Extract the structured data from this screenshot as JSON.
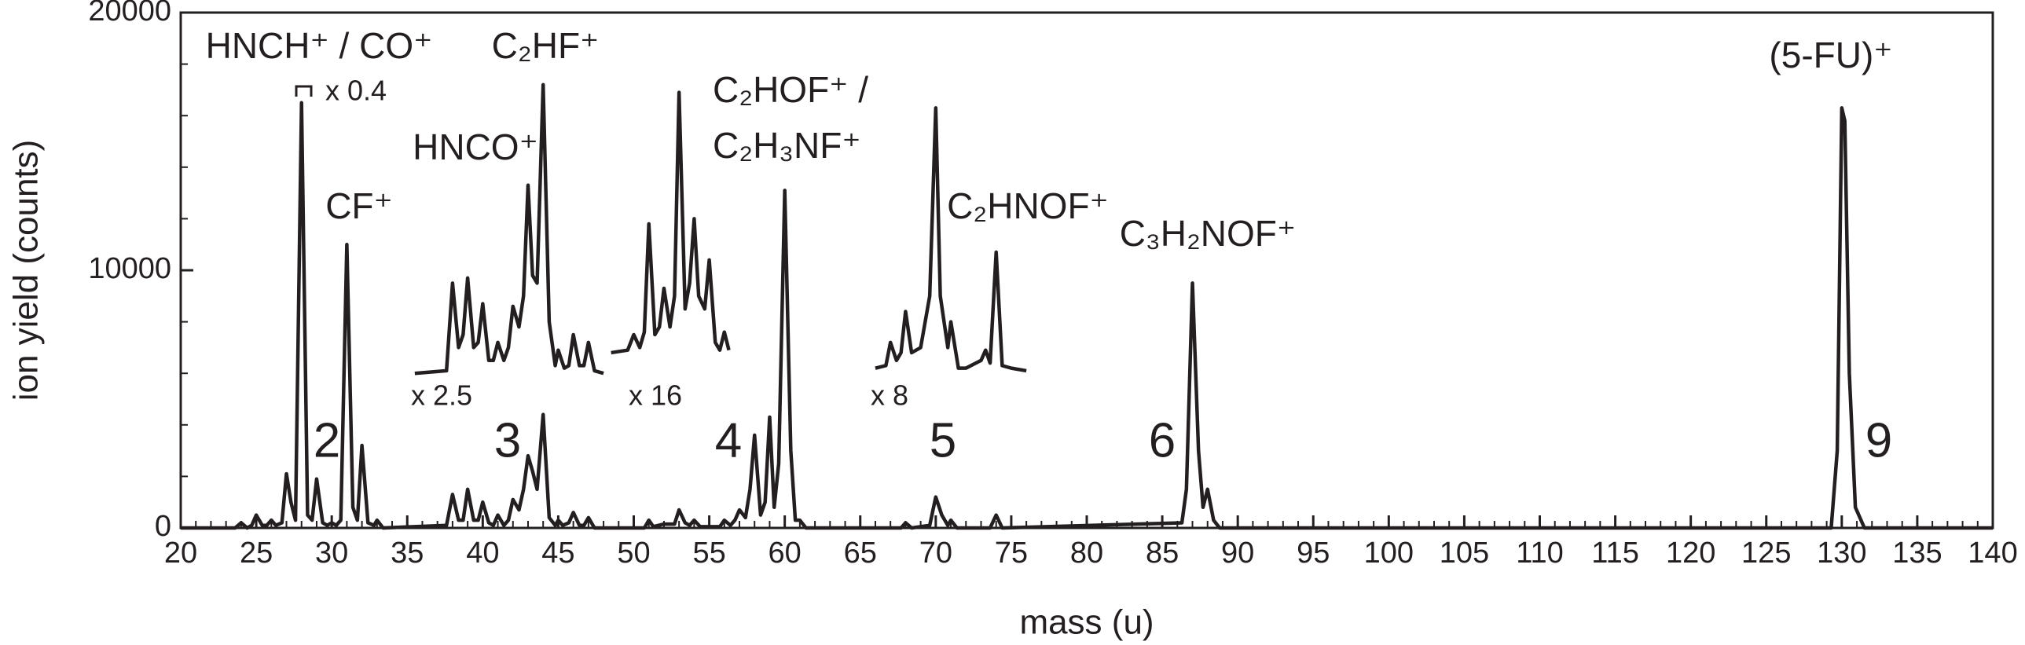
{
  "chart_data": {
    "type": "line",
    "xlabel": "mass (u)",
    "ylabel": "ion yield (counts)",
    "xlim": [
      20,
      140
    ],
    "xticks": [
      20,
      25,
      30,
      35,
      40,
      45,
      50,
      55,
      60,
      65,
      70,
      75,
      80,
      85,
      90,
      95,
      100,
      105,
      110,
      115,
      120,
      125,
      130,
      135,
      140
    ],
    "ylim": [
      0,
      20000
    ],
    "yticks": [
      0,
      10000,
      20000
    ],
    "series": [
      {
        "color": "#231f20",
        "x": [
          20,
          23.6,
          24,
          24.4,
          24.7,
          25,
          25.4,
          25.7,
          26,
          26.3,
          26.7,
          27,
          27.3,
          27.6,
          28,
          28.4,
          28.7,
          29,
          29.4,
          29.7,
          30,
          30.3,
          30.6,
          31,
          31.4,
          31.7,
          32,
          32.4,
          32.8,
          33,
          33.4,
          37.6,
          38,
          38.4,
          38.7,
          39,
          39.4,
          39.7,
          40,
          40.4,
          40.7,
          41,
          41.4,
          41.7,
          42,
          42.4,
          42.7,
          43,
          43.3,
          43.6,
          44,
          44.4,
          44.8,
          45,
          45.3,
          45.7,
          46,
          46.4,
          46.7,
          47,
          47.4,
          50.7,
          51,
          51.3,
          52,
          52.7,
          53,
          53.4,
          53.7,
          54,
          54.4,
          55.7,
          56,
          56.4,
          56.7,
          57,
          57.4,
          57.7,
          58,
          58.4,
          58.7,
          59,
          59.3,
          59.6,
          60,
          60.4,
          60.7,
          61,
          61.4,
          67.7,
          68,
          68.4,
          69.6,
          70,
          70.4,
          70.8,
          71,
          71.4,
          73.6,
          74,
          74.4,
          86.3,
          86.6,
          87,
          87.4,
          87.7,
          88,
          88.4,
          88.8,
          129.3,
          129.7,
          130,
          130.2,
          130.5,
          130.9,
          131.5,
          140
        ],
        "values": [
          0,
          0,
          200,
          0,
          100,
          500,
          100,
          100,
          300,
          100,
          200,
          2100,
          1000,
          300,
          16500,
          500,
          300,
          1900,
          200,
          100,
          200,
          100,
          300,
          11000,
          800,
          300,
          3200,
          200,
          100,
          300,
          0,
          100,
          1300,
          300,
          300,
          1500,
          300,
          300,
          1000,
          200,
          100,
          500,
          100,
          300,
          1100,
          700,
          1500,
          2800,
          2200,
          1500,
          4400,
          400,
          100,
          300,
          100,
          200,
          600,
          100,
          100,
          400,
          0,
          0,
          300,
          50,
          150,
          150,
          700,
          200,
          100,
          300,
          50,
          50,
          300,
          100,
          300,
          700,
          400,
          1500,
          3600,
          500,
          1000,
          4300,
          800,
          2500,
          13100,
          3000,
          300,
          300,
          0,
          0,
          200,
          0,
          100,
          1200,
          500,
          100,
          300,
          0,
          0,
          500,
          0,
          200,
          1500,
          9500,
          3000,
          800,
          1500,
          300,
          0,
          0,
          3000,
          16300,
          15800,
          6000,
          800,
          0,
          0
        ]
      },
      {
        "color": "#231f20",
        "x": [
          35.5,
          37.6,
          38,
          38.4,
          38.7,
          39,
          39.4,
          39.7,
          40,
          40.4,
          40.7,
          41,
          41.4,
          41.7,
          42,
          42.4,
          42.7,
          43,
          43.3,
          43.6,
          44,
          44.4,
          44.8,
          45,
          45.4,
          45.7,
          46,
          46.4,
          46.7,
          47,
          47.4,
          48
        ],
        "values": [
          6000,
          6100,
          9500,
          7000,
          7500,
          9700,
          7000,
          7200,
          8700,
          6500,
          6500,
          7200,
          6500,
          7000,
          8600,
          7800,
          9000,
          13300,
          9800,
          9500,
          17200,
          8000,
          6300,
          6900,
          6200,
          6300,
          7500,
          6300,
          6300,
          7200,
          6100,
          6000
        ]
      },
      {
        "color": "#231f20",
        "x": [
          48.5,
          49.6,
          50,
          50.4,
          50.7,
          51,
          51.4,
          51.7,
          52,
          52.4,
          52.7,
          53,
          53.4,
          53.7,
          54,
          54.3,
          54.7,
          55,
          55.4,
          55.7,
          56,
          56.3
        ],
        "values": [
          6800,
          6900,
          7500,
          7000,
          7600,
          11800,
          7500,
          7800,
          9300,
          7800,
          9000,
          16900,
          8500,
          9500,
          12000,
          9000,
          8500,
          10400,
          7200,
          6900,
          7600,
          6900
        ]
      },
      {
        "color": "#231f20",
        "x": [
          66,
          66.7,
          67,
          67.4,
          67.7,
          68,
          68.4,
          69,
          69.6,
          70,
          70.3,
          70.8,
          71,
          71.5,
          72,
          73,
          73.3,
          73.6,
          74,
          74.4,
          75,
          76
        ],
        "values": [
          6200,
          6300,
          7200,
          6500,
          6800,
          8400,
          6800,
          7000,
          9000,
          16300,
          9000,
          7000,
          8000,
          6200,
          6200,
          6500,
          6900,
          6400,
          10700,
          6300,
          6200,
          6100
        ]
      }
    ],
    "annotations": [
      "HNCH⁺ / CO⁺",
      "x 0.4",
      "CF⁺",
      "HNCO⁺",
      "C₂HF⁺",
      "C₂HOF⁺ /",
      "C₂H₃NF⁺",
      "C₂HNOF⁺",
      "C₃H₂NOF⁺",
      "(5-FU)⁺",
      "x 2.5",
      "x 16",
      "x 8",
      "2",
      "3",
      "4",
      "5",
      "6",
      "9"
    ]
  }
}
